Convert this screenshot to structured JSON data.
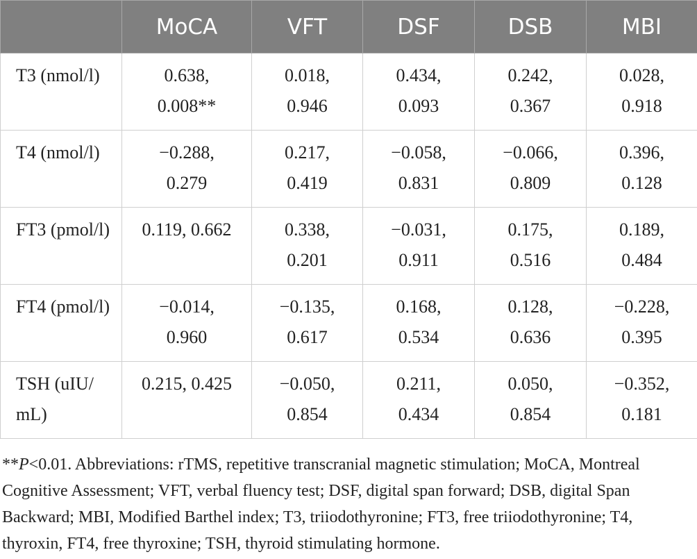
{
  "table": {
    "headers": [
      "",
      "MoCA",
      "VFT",
      "DSF",
      "DSB",
      "MBI"
    ],
    "rows": [
      {
        "label": [
          "T3",
          "(nmol/l)"
        ],
        "cells": [
          [
            "0.638,",
            "0.008**"
          ],
          [
            "0.018,",
            "0.946"
          ],
          [
            "0.434,",
            "0.093"
          ],
          [
            "0.242,",
            "0.367"
          ],
          [
            "0.028,",
            "0.918"
          ]
        ]
      },
      {
        "label": [
          "T4",
          "(nmol/l)"
        ],
        "cells": [
          [
            "−0.288,",
            "0.279"
          ],
          [
            "0.217,",
            "0.419"
          ],
          [
            "−0.058,",
            "0.831"
          ],
          [
            "−0.066,",
            "0.809"
          ],
          [
            "0.396,",
            "0.128"
          ]
        ]
      },
      {
        "label": [
          "FT3",
          "(pmol/l)"
        ],
        "cells": [
          [
            "0.119, 0.662",
            ""
          ],
          [
            "0.338,",
            "0.201"
          ],
          [
            "−0.031,",
            "0.911"
          ],
          [
            "0.175,",
            "0.516"
          ],
          [
            "0.189,",
            "0.484"
          ]
        ]
      },
      {
        "label": [
          "FT4",
          "(pmol/l)"
        ],
        "cells": [
          [
            "−0.014,",
            "0.960"
          ],
          [
            "−0.135,",
            "0.617"
          ],
          [
            "0.168,",
            "0.534"
          ],
          [
            "0.128,",
            "0.636"
          ],
          [
            "−0.228,",
            "0.395"
          ]
        ]
      },
      {
        "label": [
          "TSH (uIU/",
          "mL)"
        ],
        "cells": [
          [
            "0.215, 0.425",
            ""
          ],
          [
            "−0.050,",
            "0.854"
          ],
          [
            "0.211,",
            "0.434"
          ],
          [
            "0.050,",
            "0.854"
          ],
          [
            "−0.352,",
            "0.181"
          ]
        ]
      }
    ]
  },
  "footnote": {
    "prefix": "**",
    "p_symbol": "P",
    "text": "<0.01. Abbreviations: rTMS, repetitive transcranial magnetic stimulation; MoCA, Montreal Cognitive Assessment; VFT, verbal fluency test; DSF, digital span forward; DSB, digital Span Backward; MBI, Modified Barthel index; T3, triiodothyronine; FT3, free triiodothyronine; T4, thyroxin, FT4, free thyroxine; TSH, thyroid stimulating hormone."
  }
}
